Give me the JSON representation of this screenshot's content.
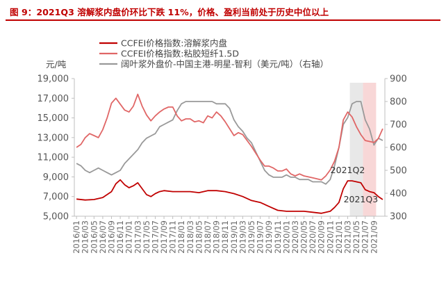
{
  "page": {
    "title": "图 9：2021Q3 溶解浆内盘价环比下跌 11%，价格、盈利当前处于历史中位以上"
  },
  "colors": {
    "title": "#c00000",
    "series_dark_red": "#c00000",
    "series_pink": "#e06666",
    "series_gray": "#999999",
    "shade_gray": "#e8e8e8",
    "shade_pink": "#f8d7d7",
    "axis": "#bfbfbf"
  },
  "chart_data": {
    "type": "line",
    "left_unit_label": "元/吨",
    "y_left": {
      "min": 5000,
      "max": 19000,
      "ticks": [
        5000,
        7000,
        9000,
        11000,
        13000,
        15000,
        17000,
        19000
      ],
      "tick_labels": [
        "5,000",
        "7,000",
        "9,000",
        "11,000",
        "13,000",
        "15,000",
        "17,000",
        "19,000"
      ]
    },
    "y_right": {
      "min": 300,
      "max": 900,
      "ticks": [
        300,
        400,
        500,
        600,
        700,
        800,
        900
      ],
      "tick_labels": [
        "300",
        "400",
        "500",
        "600",
        "700",
        "800",
        "900"
      ]
    },
    "x_start": "2016-01",
    "x_end": "2021-11",
    "x_ticks": [
      "2016/01",
      "2016/03",
      "2016/05",
      "2016/07",
      "2016/09",
      "2016/11",
      "2017/01",
      "2017/03",
      "2017/05",
      "2017/07",
      "2017/09",
      "2017/11",
      "2018/01",
      "2018/03",
      "2018/05",
      "2018/07",
      "2018/09",
      "2018/11",
      "2019/01",
      "2019/03",
      "2019/05",
      "2019/07",
      "2019/09",
      "2019/11",
      "2020/01",
      "2020/03",
      "2020/05",
      "2020/07",
      "2020/09",
      "2020/11",
      "2021/01",
      "2021/03",
      "2021/05",
      "2021/07",
      "2021/09"
    ],
    "shaded_ranges": [
      {
        "from": "2021-04",
        "to": "2021-06",
        "color": "#e8e8e8"
      },
      {
        "from": "2021-07",
        "to": "2021-09",
        "color": "#f8d7d7"
      }
    ],
    "annotations": [
      {
        "text": "2021Q2",
        "x": "2021-03",
        "y": 9400,
        "axis": "left"
      },
      {
        "text": "2021Q3",
        "x": "2021-06",
        "y": 6400,
        "axis": "left"
      }
    ],
    "series": [
      {
        "name": "CCFEI价格指数:溶解浆内盘",
        "axis": "left",
        "color": "#c00000",
        "points": [
          [
            "2016-01",
            6750
          ],
          [
            "2016-03",
            6650
          ],
          [
            "2016-05",
            6700
          ],
          [
            "2016-07",
            6900
          ],
          [
            "2016-09",
            7500
          ],
          [
            "2016-10",
            8300
          ],
          [
            "2016-11",
            8700
          ],
          [
            "2016-12",
            8200
          ],
          [
            "2017-01",
            7900
          ],
          [
            "2017-02",
            8100
          ],
          [
            "2017-03",
            8400
          ],
          [
            "2017-04",
            7800
          ],
          [
            "2017-05",
            7200
          ],
          [
            "2017-06",
            7000
          ],
          [
            "2017-07",
            7300
          ],
          [
            "2017-08",
            7500
          ],
          [
            "2017-09",
            7600
          ],
          [
            "2017-11",
            7500
          ],
          [
            "2018-01",
            7500
          ],
          [
            "2018-03",
            7500
          ],
          [
            "2018-05",
            7400
          ],
          [
            "2018-07",
            7600
          ],
          [
            "2018-09",
            7600
          ],
          [
            "2018-11",
            7500
          ],
          [
            "2019-01",
            7300
          ],
          [
            "2019-03",
            7000
          ],
          [
            "2019-05",
            6600
          ],
          [
            "2019-07",
            6400
          ],
          [
            "2019-09",
            6000
          ],
          [
            "2019-11",
            5600
          ],
          [
            "2020-01",
            5500
          ],
          [
            "2020-03",
            5500
          ],
          [
            "2020-05",
            5500
          ],
          [
            "2020-07",
            5400
          ],
          [
            "2020-09",
            5300
          ],
          [
            "2020-11",
            5500
          ],
          [
            "2020-12",
            5900
          ],
          [
            "2021-01",
            6400
          ],
          [
            "2021-02",
            7800
          ],
          [
            "2021-03",
            8600
          ],
          [
            "2021-04",
            8600
          ],
          [
            "2021-05",
            8500
          ],
          [
            "2021-06",
            8400
          ],
          [
            "2021-07",
            7700
          ],
          [
            "2021-08",
            7500
          ],
          [
            "2021-09",
            7400
          ],
          [
            "2021-10",
            7000
          ],
          [
            "2021-11",
            6700
          ]
        ]
      },
      {
        "name": "CCFEI价格指数:粘胶短纤1.5D",
        "axis": "left",
        "color": "#e06666",
        "points": [
          [
            "2016-01",
            12000
          ],
          [
            "2016-02",
            12300
          ],
          [
            "2016-03",
            13000
          ],
          [
            "2016-04",
            13400
          ],
          [
            "2016-05",
            13200
          ],
          [
            "2016-06",
            13000
          ],
          [
            "2016-07",
            13800
          ],
          [
            "2016-08",
            15000
          ],
          [
            "2016-09",
            16500
          ],
          [
            "2016-10",
            17000
          ],
          [
            "2016-11",
            16400
          ],
          [
            "2016-12",
            15800
          ],
          [
            "2017-01",
            15600
          ],
          [
            "2017-02",
            16200
          ],
          [
            "2017-03",
            17400
          ],
          [
            "2017-04",
            16200
          ],
          [
            "2017-05",
            15300
          ],
          [
            "2017-06",
            14700
          ],
          [
            "2017-07",
            15200
          ],
          [
            "2017-08",
            15600
          ],
          [
            "2017-09",
            15900
          ],
          [
            "2017-10",
            16100
          ],
          [
            "2017-11",
            16100
          ],
          [
            "2017-12",
            15200
          ],
          [
            "2018-01",
            14700
          ],
          [
            "2018-02",
            14900
          ],
          [
            "2018-03",
            14900
          ],
          [
            "2018-04",
            14600
          ],
          [
            "2018-05",
            14700
          ],
          [
            "2018-06",
            14500
          ],
          [
            "2018-07",
            15200
          ],
          [
            "2018-08",
            15000
          ],
          [
            "2018-09",
            15600
          ],
          [
            "2018-10",
            15200
          ],
          [
            "2018-11",
            14600
          ],
          [
            "2018-12",
            13900
          ],
          [
            "2019-01",
            13200
          ],
          [
            "2019-02",
            13500
          ],
          [
            "2019-03",
            13300
          ],
          [
            "2019-04",
            12700
          ],
          [
            "2019-05",
            12100
          ],
          [
            "2019-06",
            11400
          ],
          [
            "2019-07",
            10700
          ],
          [
            "2019-08",
            10100
          ],
          [
            "2019-09",
            10100
          ],
          [
            "2019-10",
            9900
          ],
          [
            "2019-11",
            9600
          ],
          [
            "2019-12",
            9600
          ],
          [
            "2020-01",
            9800
          ],
          [
            "2020-02",
            9300
          ],
          [
            "2020-03",
            9100
          ],
          [
            "2020-04",
            9300
          ],
          [
            "2020-05",
            9100
          ],
          [
            "2020-06",
            9000
          ],
          [
            "2020-07",
            8900
          ],
          [
            "2020-08",
            8800
          ],
          [
            "2020-09",
            8700
          ],
          [
            "2020-10",
            9100
          ],
          [
            "2020-11",
            9700
          ],
          [
            "2020-12",
            10600
          ],
          [
            "2021-01",
            12000
          ],
          [
            "2021-02",
            14800
          ],
          [
            "2021-03",
            15600
          ],
          [
            "2021-04",
            15100
          ],
          [
            "2021-05",
            14100
          ],
          [
            "2021-06",
            13300
          ],
          [
            "2021-07",
            12700
          ],
          [
            "2021-08",
            12600
          ],
          [
            "2021-09",
            12500
          ],
          [
            "2021-10",
            12900
          ],
          [
            "2021-11",
            13900
          ]
        ]
      },
      {
        "name": "阔叶浆外盘价-中国主港-明星-智利（美元/吨）（右轴）",
        "axis": "right",
        "color": "#999999",
        "points": [
          [
            "2016-01",
            530
          ],
          [
            "2016-02",
            520
          ],
          [
            "2016-03",
            500
          ],
          [
            "2016-04",
            490
          ],
          [
            "2016-05",
            500
          ],
          [
            "2016-06",
            510
          ],
          [
            "2016-07",
            500
          ],
          [
            "2016-08",
            490
          ],
          [
            "2016-09",
            480
          ],
          [
            "2016-10",
            490
          ],
          [
            "2016-11",
            500
          ],
          [
            "2016-12",
            530
          ],
          [
            "2017-01",
            550
          ],
          [
            "2017-02",
            570
          ],
          [
            "2017-03",
            590
          ],
          [
            "2017-04",
            620
          ],
          [
            "2017-05",
            640
          ],
          [
            "2017-06",
            650
          ],
          [
            "2017-07",
            660
          ],
          [
            "2017-08",
            690
          ],
          [
            "2017-09",
            700
          ],
          [
            "2017-10",
            710
          ],
          [
            "2017-11",
            720
          ],
          [
            "2017-12",
            760
          ],
          [
            "2018-01",
            790
          ],
          [
            "2018-02",
            800
          ],
          [
            "2018-03",
            800
          ],
          [
            "2018-04",
            800
          ],
          [
            "2018-05",
            800
          ],
          [
            "2018-06",
            800
          ],
          [
            "2018-07",
            800
          ],
          [
            "2018-08",
            800
          ],
          [
            "2018-09",
            790
          ],
          [
            "2018-10",
            790
          ],
          [
            "2018-11",
            790
          ],
          [
            "2018-12",
            770
          ],
          [
            "2019-01",
            720
          ],
          [
            "2019-02",
            690
          ],
          [
            "2019-03",
            670
          ],
          [
            "2019-04",
            640
          ],
          [
            "2019-05",
            620
          ],
          [
            "2019-06",
            580
          ],
          [
            "2019-07",
            540
          ],
          [
            "2019-08",
            500
          ],
          [
            "2019-09",
            480
          ],
          [
            "2019-10",
            470
          ],
          [
            "2019-11",
            470
          ],
          [
            "2019-12",
            470
          ],
          [
            "2020-01",
            480
          ],
          [
            "2020-02",
            470
          ],
          [
            "2020-03",
            470
          ],
          [
            "2020-04",
            460
          ],
          [
            "2020-05",
            460
          ],
          [
            "2020-06",
            460
          ],
          [
            "2020-07",
            450
          ],
          [
            "2020-08",
            450
          ],
          [
            "2020-09",
            450
          ],
          [
            "2020-10",
            440
          ],
          [
            "2020-11",
            460
          ],
          [
            "2020-12",
            520
          ],
          [
            "2021-01",
            600
          ],
          [
            "2021-02",
            700
          ],
          [
            "2021-03",
            730
          ],
          [
            "2021-04",
            790
          ],
          [
            "2021-05",
            800
          ],
          [
            "2021-06",
            800
          ],
          [
            "2021-07",
            720
          ],
          [
            "2021-08",
            680
          ],
          [
            "2021-09",
            610
          ],
          [
            "2021-10",
            640
          ],
          [
            "2021-11",
            630
          ]
        ]
      }
    ]
  }
}
